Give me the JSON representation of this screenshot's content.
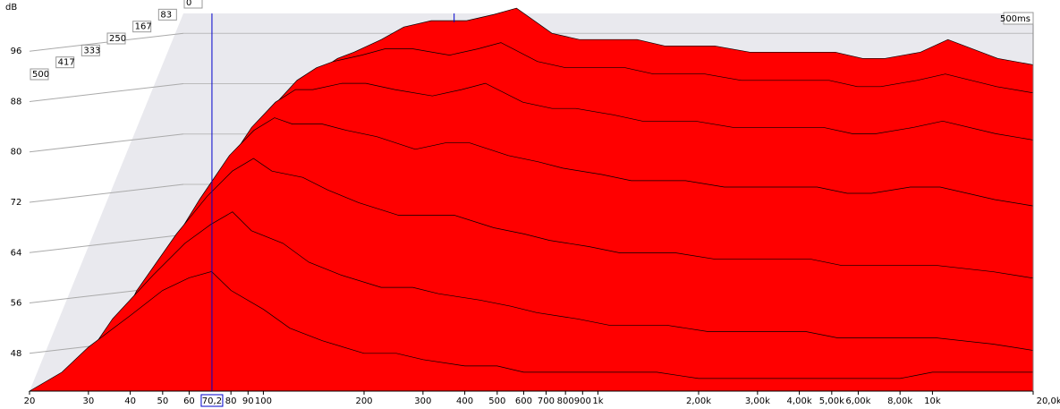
{
  "chart_data": {
    "type": "waterfall",
    "y_unit_label": "dB",
    "time_axis_label": "500ms",
    "xscale": "log",
    "xlim": [
      20,
      20000
    ],
    "ylim": [
      42,
      102
    ],
    "xticks": [
      20,
      30,
      40,
      50,
      60,
      80,
      90,
      100,
      200,
      300,
      400,
      500,
      600,
      700,
      800,
      900,
      {
        "value": 1000,
        "label": "1k"
      },
      {
        "value": 2000,
        "label": "2,00k"
      },
      {
        "value": 3000,
        "label": "3,00k"
      },
      {
        "value": 4000,
        "label": "4,00k"
      },
      {
        "value": 5000,
        "label": "5,00k"
      },
      {
        "value": 6000,
        "label": "6,00k"
      },
      {
        "value": 8000,
        "label": "8,00k"
      },
      {
        "value": 10000,
        "label": "10k"
      },
      {
        "value": 20000,
        "label": "20,0kHz"
      }
    ],
    "yticks": [
      48,
      56,
      64,
      72,
      80,
      88,
      96
    ],
    "cursor": {
      "value": 70.2,
      "label": "70,2",
      "color": "#0000cc"
    },
    "x": [
      20,
      25,
      30,
      40,
      50,
      60,
      70,
      80,
      100,
      120,
      150,
      200,
      250,
      300,
      400,
      500,
      600,
      800,
      1000,
      1500,
      2000,
      3000,
      4000,
      5000,
      6000,
      8000,
      10000,
      15000,
      20000
    ],
    "series": [
      {
        "name": "0",
        "color": "#ff0000",
        "values": [
          44,
          56,
          68,
          79,
          86,
          90,
          92,
          93,
          95,
          97,
          98,
          98,
          99,
          100,
          96,
          95,
          95,
          95,
          94,
          94,
          93,
          93,
          93,
          92,
          92,
          93,
          95,
          92,
          91
        ]
      },
      {
        "name": "83",
        "color": "#ff0000",
        "values": [
          44,
          55,
          67,
          78,
          85,
          89,
          91,
          92,
          93,
          94,
          94,
          93,
          94,
          95,
          92,
          91,
          91,
          91,
          90,
          90,
          89,
          89,
          89,
          88,
          88,
          89,
          90,
          88,
          87
        ]
      },
      {
        "name": "167",
        "color": "#ff0000",
        "values": [
          43,
          53,
          64,
          75,
          82,
          86,
          88,
          88,
          89,
          89,
          88,
          87,
          88,
          89,
          86,
          85,
          85,
          84,
          83,
          83,
          82,
          82,
          82,
          81,
          81,
          82,
          83,
          81,
          80
        ]
      },
      {
        "name": "250",
        "color": "#ff0000",
        "values": [
          43,
          51,
          61,
          71,
          78,
          82,
          84,
          83,
          83,
          82,
          81,
          79,
          80,
          80,
          78,
          77,
          76,
          75,
          74,
          74,
          73,
          73,
          73,
          72,
          72,
          73,
          73,
          71,
          70
        ]
      },
      {
        "name": "333",
        "color": "#ff0000",
        "values": [
          42,
          49,
          57,
          66,
          72,
          76,
          78,
          76,
          75,
          73,
          71,
          69,
          69,
          69,
          67,
          66,
          65,
          64,
          63,
          63,
          62,
          62,
          62,
          61,
          61,
          61,
          61,
          60,
          59
        ]
      },
      {
        "name": "417",
        "color": "#ff0000",
        "values": [
          42,
          47,
          53,
          60,
          65,
          68,
          70,
          67,
          65,
          62,
          60,
          58,
          58,
          57,
          56,
          55,
          54,
          53,
          52,
          52,
          51,
          51,
          51,
          50,
          50,
          50,
          50,
          49,
          48
        ]
      },
      {
        "name": "500",
        "color": "#ff0000",
        "values": [
          42,
          45,
          49,
          54,
          58,
          60,
          61,
          58,
          55,
          52,
          50,
          48,
          48,
          47,
          46,
          46,
          45,
          45,
          45,
          45,
          44,
          44,
          44,
          44,
          44,
          44,
          45,
          45,
          45
        ]
      }
    ]
  }
}
